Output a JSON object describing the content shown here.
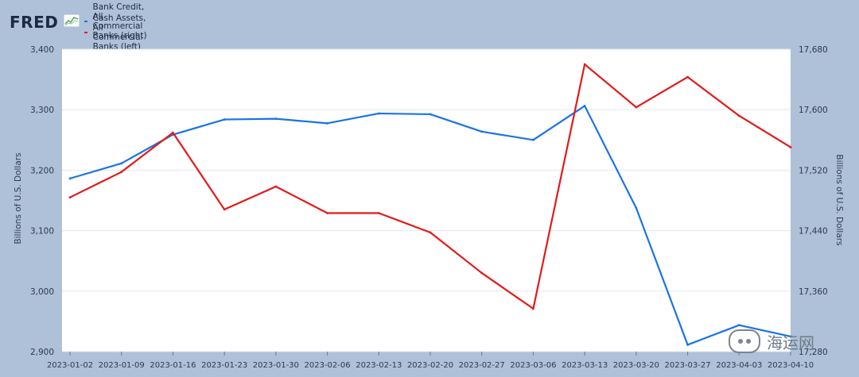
{
  "header": {
    "logo_text": "FRED"
  },
  "watermark": {
    "text": "海运网"
  },
  "chart_data": {
    "type": "line",
    "x": [
      "2023-01-02",
      "2023-01-09",
      "2023-01-16",
      "2023-01-23",
      "2023-01-30",
      "2023-02-06",
      "2023-02-13",
      "2023-02-20",
      "2023-02-27",
      "2023-03-06",
      "2023-03-13",
      "2023-03-20",
      "2023-03-27",
      "2023-04-03",
      "2023-04-10"
    ],
    "series": [
      {
        "name": "Bank Credit, All Commercial Banks (right)",
        "axis": "right",
        "color": "#1a73e8",
        "values": [
          17509,
          17529,
          17567,
          17587,
          17588,
          17582,
          17595,
          17594,
          17571,
          17560,
          17605,
          17470,
          17289,
          17315,
          17300
        ]
      },
      {
        "name": "Cash Assets, All Commercial Banks (left)",
        "axis": "left",
        "color": "#e21a1a",
        "values": [
          3155,
          3197,
          3262,
          3135,
          3173,
          3129,
          3129,
          3097,
          3030,
          2971,
          3375,
          3304,
          3354,
          3290,
          3238
        ]
      }
    ],
    "left_axis": {
      "label": "Billions of U.S. Dollars",
      "ylim": [
        2900,
        3400
      ],
      "ticks": [
        "2,900",
        "3,000",
        "3,100",
        "3,200",
        "3,300",
        "3,400"
      ]
    },
    "right_axis": {
      "label": "Billions of U.S. Dollars",
      "ylim": [
        17280,
        17680
      ],
      "ticks": [
        "17,280",
        "17,360",
        "17,440",
        "17,520",
        "17,600",
        "17,680"
      ]
    },
    "grid": true,
    "legend": "top-left"
  }
}
